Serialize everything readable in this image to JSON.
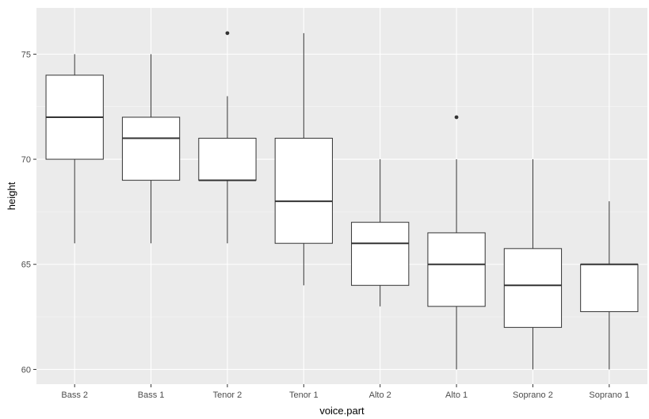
{
  "chart_data": {
    "type": "boxplot",
    "xlabel": "voice.part",
    "ylabel": "height",
    "ylim": [
      59.3,
      77.2
    ],
    "y_ticks": [
      60,
      65,
      70,
      75
    ],
    "y_tick_labels": [
      "60",
      "65",
      "70",
      "75"
    ],
    "grid": true,
    "categories": [
      "Bass 2",
      "Bass 1",
      "Tenor 2",
      "Tenor 1",
      "Alto 2",
      "Alto 1",
      "Soprano 2",
      "Soprano 1"
    ],
    "boxes": [
      {
        "category": "Bass 2",
        "whisker_low": 66,
        "q1": 70,
        "median": 72,
        "q3": 74,
        "whisker_high": 75,
        "outliers": []
      },
      {
        "category": "Bass 1",
        "whisker_low": 66,
        "q1": 69,
        "median": 71,
        "q3": 72,
        "whisker_high": 75,
        "outliers": []
      },
      {
        "category": "Tenor 2",
        "whisker_low": 66,
        "q1": 69,
        "median": 69,
        "q3": 71,
        "whisker_high": 73,
        "outliers": [
          76
        ]
      },
      {
        "category": "Tenor 1",
        "whisker_low": 64,
        "q1": 66,
        "median": 68,
        "q3": 71,
        "whisker_high": 76,
        "outliers": []
      },
      {
        "category": "Alto 2",
        "whisker_low": 63,
        "q1": 64,
        "median": 66,
        "q3": 67,
        "whisker_high": 70,
        "outliers": []
      },
      {
        "category": "Alto 1",
        "whisker_low": 60,
        "q1": 63,
        "median": 65,
        "q3": 66.5,
        "whisker_high": 70,
        "outliers": [
          72
        ]
      },
      {
        "category": "Soprano 2",
        "whisker_low": 60,
        "q1": 62,
        "median": 64,
        "q3": 65.75,
        "whisker_high": 70,
        "outliers": []
      },
      {
        "category": "Soprano 1",
        "whisker_low": 60,
        "q1": 62.75,
        "median": 65,
        "q3": 65,
        "whisker_high": 68,
        "outliers": []
      }
    ],
    "colors": {
      "panel_background": "#ebebeb",
      "major_grid": "#ffffff",
      "minor_grid": "#f5f5f5",
      "box_fill": "#ffffff",
      "box_line": "#333333",
      "outlier": "#333333"
    }
  }
}
